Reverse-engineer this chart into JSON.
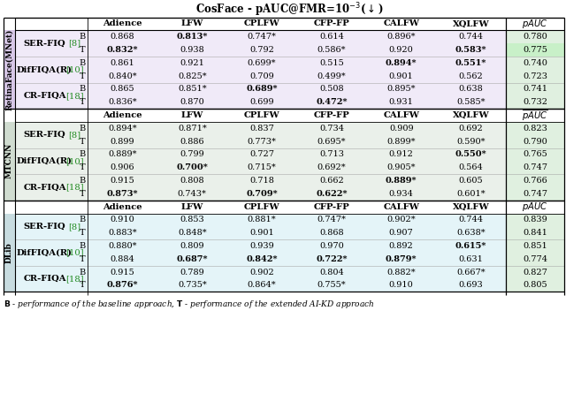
{
  "title": "CosFace - pAUC@FMR=10$^{-3}$($\\downarrow$)",
  "col_headers": [
    "Adience",
    "LFW",
    "CPLFW",
    "CFP-FP",
    "CALFW",
    "XQLFW"
  ],
  "pauc_header": "$\\overline{pAUC}$",
  "groups": [
    {
      "label": "RetinaFace(MNet)",
      "side_color": "#d8c8e8",
      "bg_color": "#f0eaf8",
      "pauc_bg": "#e0f0e0",
      "rows": [
        {
          "method": "SER-FIQ",
          "ref": "[8]",
          "B": [
            "0.868",
            "0.813*",
            "0.747*",
            "0.614",
            "0.896*",
            "0.744",
            "0.780"
          ],
          "T": [
            "0.832*",
            "0.938",
            "0.792",
            "0.586*",
            "0.920",
            "0.583*",
            "0.775"
          ],
          "bB": [
            0,
            1,
            0,
            0,
            0,
            0,
            0
          ],
          "bT": [
            1,
            0,
            0,
            0,
            0,
            1,
            0
          ],
          "T_pauc_green": true
        },
        {
          "method": "DifFIQA(R)",
          "ref": "[10]",
          "B": [
            "0.861",
            "0.921",
            "0.699*",
            "0.515",
            "0.894*",
            "0.551*",
            "0.740"
          ],
          "T": [
            "0.840*",
            "0.825*",
            "0.709",
            "0.499*",
            "0.901",
            "0.562",
            "0.723"
          ],
          "bB": [
            0,
            0,
            0,
            0,
            1,
            1,
            0
          ],
          "bT": [
            0,
            0,
            0,
            0,
            0,
            0,
            0
          ],
          "T_pauc_green": false
        },
        {
          "method": "CR-FIQA",
          "ref": "[18]",
          "B": [
            "0.865",
            "0.851*",
            "0.689*",
            "0.508",
            "0.895*",
            "0.638",
            "0.741"
          ],
          "T": [
            "0.836*",
            "0.870",
            "0.699",
            "0.472*",
            "0.931",
            "0.585*",
            "0.732"
          ],
          "bB": [
            0,
            0,
            1,
            0,
            0,
            0,
            0
          ],
          "bT": [
            0,
            0,
            0,
            1,
            0,
            0,
            0
          ],
          "T_pauc_green": false
        }
      ]
    },
    {
      "label": "MTCNN",
      "side_color": "#d0dcd0",
      "bg_color": "#eaf0ea",
      "pauc_bg": "#e0f0e0",
      "rows": [
        {
          "method": "SER-FIQ",
          "ref": "[8]",
          "B": [
            "0.894*",
            "0.871*",
            "0.837",
            "0.734",
            "0.909",
            "0.692",
            "0.823"
          ],
          "T": [
            "0.899",
            "0.886",
            "0.773*",
            "0.695*",
            "0.899*",
            "0.590*",
            "0.790"
          ],
          "bB": [
            0,
            0,
            0,
            0,
            0,
            0,
            0
          ],
          "bT": [
            0,
            0,
            0,
            0,
            0,
            0,
            0
          ],
          "T_pauc_green": false
        },
        {
          "method": "DifFIQA(R)",
          "ref": "[10]",
          "B": [
            "0.889*",
            "0.799",
            "0.727",
            "0.713",
            "0.912",
            "0.550*",
            "0.765"
          ],
          "T": [
            "0.906",
            "0.700*",
            "0.715*",
            "0.692*",
            "0.905*",
            "0.564",
            "0.747"
          ],
          "bB": [
            0,
            0,
            0,
            0,
            0,
            1,
            0
          ],
          "bT": [
            0,
            1,
            0,
            0,
            0,
            0,
            0
          ],
          "T_pauc_green": false
        },
        {
          "method": "CR-FIQA",
          "ref": "[18]",
          "B": [
            "0.915",
            "0.808",
            "0.718",
            "0.662",
            "0.889*",
            "0.605",
            "0.766"
          ],
          "T": [
            "0.873*",
            "0.743*",
            "0.709*",
            "0.622*",
            "0.934",
            "0.601*",
            "0.747"
          ],
          "bB": [
            0,
            0,
            0,
            0,
            1,
            0,
            0
          ],
          "bT": [
            1,
            0,
            1,
            1,
            0,
            0,
            0
          ],
          "T_pauc_green": false
        }
      ]
    },
    {
      "label": "DLib",
      "side_color": "#c8dce0",
      "bg_color": "#e4f4f8",
      "pauc_bg": "#e0f0e0",
      "rows": [
        {
          "method": "SER-FIQ",
          "ref": "[8]",
          "B": [
            "0.910",
            "0.853",
            "0.881*",
            "0.747*",
            "0.902*",
            "0.744",
            "0.839"
          ],
          "T": [
            "0.883*",
            "0.848*",
            "0.901",
            "0.868",
            "0.907",
            "0.638*",
            "0.841"
          ],
          "bB": [
            0,
            0,
            0,
            0,
            0,
            0,
            0
          ],
          "bT": [
            0,
            0,
            0,
            0,
            0,
            0,
            0
          ],
          "T_pauc_green": false
        },
        {
          "method": "DifFIQA(R)",
          "ref": "[10]",
          "B": [
            "0.880*",
            "0.809",
            "0.939",
            "0.970",
            "0.892",
            "0.615*",
            "0.851"
          ],
          "T": [
            "0.884",
            "0.687*",
            "0.842*",
            "0.722*",
            "0.879*",
            "0.631",
            "0.774"
          ],
          "bB": [
            0,
            0,
            0,
            0,
            0,
            1,
            0
          ],
          "bT": [
            0,
            1,
            1,
            1,
            1,
            0,
            0
          ],
          "T_pauc_green": false
        },
        {
          "method": "CR-FIQA",
          "ref": "[18]",
          "B": [
            "0.915",
            "0.789",
            "0.902",
            "0.804",
            "0.882*",
            "0.667*",
            "0.827"
          ],
          "T": [
            "0.876*",
            "0.735*",
            "0.864*",
            "0.755*",
            "0.910",
            "0.693",
            "0.805"
          ],
          "bB": [
            0,
            0,
            0,
            0,
            0,
            0,
            0
          ],
          "bT": [
            1,
            0,
            0,
            0,
            0,
            0,
            0
          ],
          "T_pauc_green": false
        }
      ]
    }
  ],
  "footer_B": "B",
  "footer_T": "T",
  "footer_rest": " - performance of the baseline approach,  - performance of the extended AI-KD approach"
}
